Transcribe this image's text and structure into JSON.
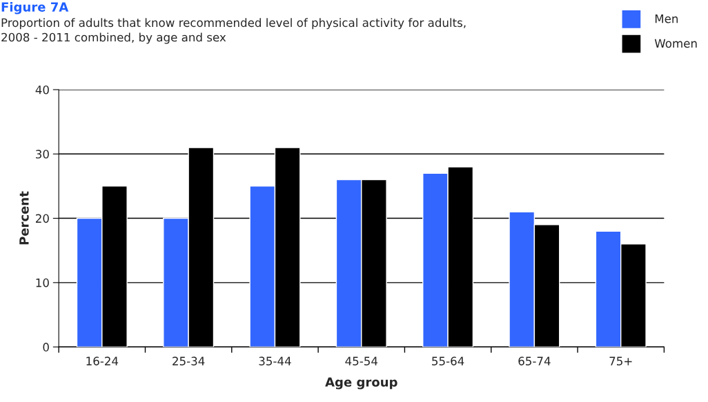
{
  "chart_data": {
    "type": "bar",
    "title": "Figure 7A",
    "subtitle": "Proportion of adults that know recommended level of physical activity for adults,\n2008 - 2011 combined, by age and sex",
    "xlabel": "Age group",
    "ylabel": "Percent",
    "categories": [
      "16-24",
      "25-34",
      "35-44",
      "45-54",
      "55-64",
      "65-74",
      "75+"
    ],
    "series": [
      {
        "name": "Men",
        "color": "#3366ff",
        "values": [
          20,
          20,
          25,
          26,
          27,
          21,
          18
        ]
      },
      {
        "name": "Women",
        "color": "#000000",
        "values": [
          25,
          31,
          31,
          26,
          28,
          19,
          16
        ]
      }
    ],
    "ylim": [
      0,
      40
    ],
    "yticks": [
      0,
      10,
      20,
      30,
      40
    ],
    "grid": "y",
    "legend": "top right"
  }
}
